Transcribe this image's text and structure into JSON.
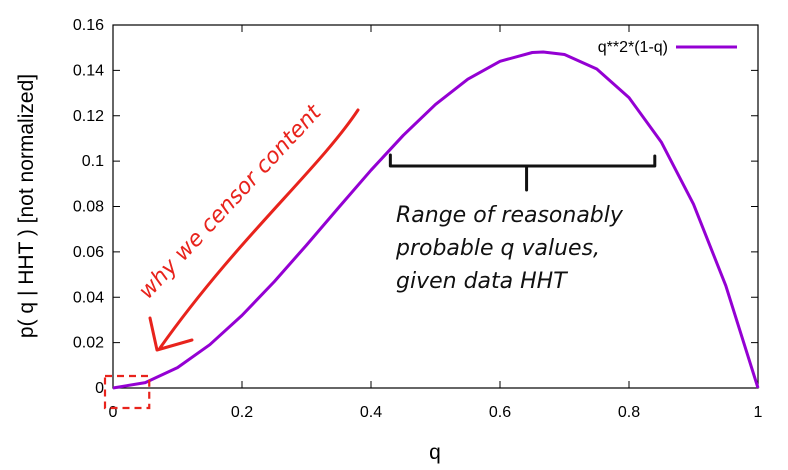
{
  "chart_data": {
    "type": "line",
    "title": "",
    "xlabel": "q",
    "ylabel": "p( q | HHT ) [not normalized]",
    "xlim": [
      0,
      1
    ],
    "ylim": [
      0,
      0.16
    ],
    "xticks": [
      0,
      0.2,
      0.4,
      0.6,
      0.8,
      1
    ],
    "xtick_labels": [
      "0",
      "0.2",
      "0.4",
      "0.6",
      "0.8",
      "1"
    ],
    "yticks": [
      0,
      0.02,
      0.04,
      0.06,
      0.08,
      0.1,
      0.12,
      0.14,
      0.16
    ],
    "ytick_labels": [
      "0",
      "0.02",
      "0.04",
      "0.06",
      "0.08",
      "0.1",
      "0.12",
      "0.14",
      "0.16"
    ],
    "grid": false,
    "legend_position": "top-right",
    "series": [
      {
        "name": "q**2*(1-q)",
        "color": "#9400d3",
        "x": [
          0,
          0.05,
          0.1,
          0.15,
          0.2,
          0.25,
          0.3,
          0.35,
          0.4,
          0.45,
          0.5,
          0.55,
          0.6,
          0.65,
          0.667,
          0.7,
          0.75,
          0.8,
          0.85,
          0.9,
          0.95,
          1
        ],
        "y": [
          0,
          0.0024,
          0.009,
          0.0191,
          0.032,
          0.0469,
          0.063,
          0.0796,
          0.096,
          0.1114,
          0.125,
          0.1361,
          0.144,
          0.1479,
          0.1481,
          0.147,
          0.1406,
          0.128,
          0.1084,
          0.081,
          0.0451,
          0
        ]
      }
    ],
    "annotations": {
      "bracket_text_lines": [
        "Range of reasonably",
        "probable q values,",
        "given data HHT"
      ],
      "bracket_range": [
        0.43,
        0.84
      ],
      "bracket_y": 0.1,
      "red_note": "why we censor content",
      "red_color": "#e8231c",
      "ink_color": "#111111",
      "red_box_range": [
        0,
        0.05
      ]
    }
  }
}
